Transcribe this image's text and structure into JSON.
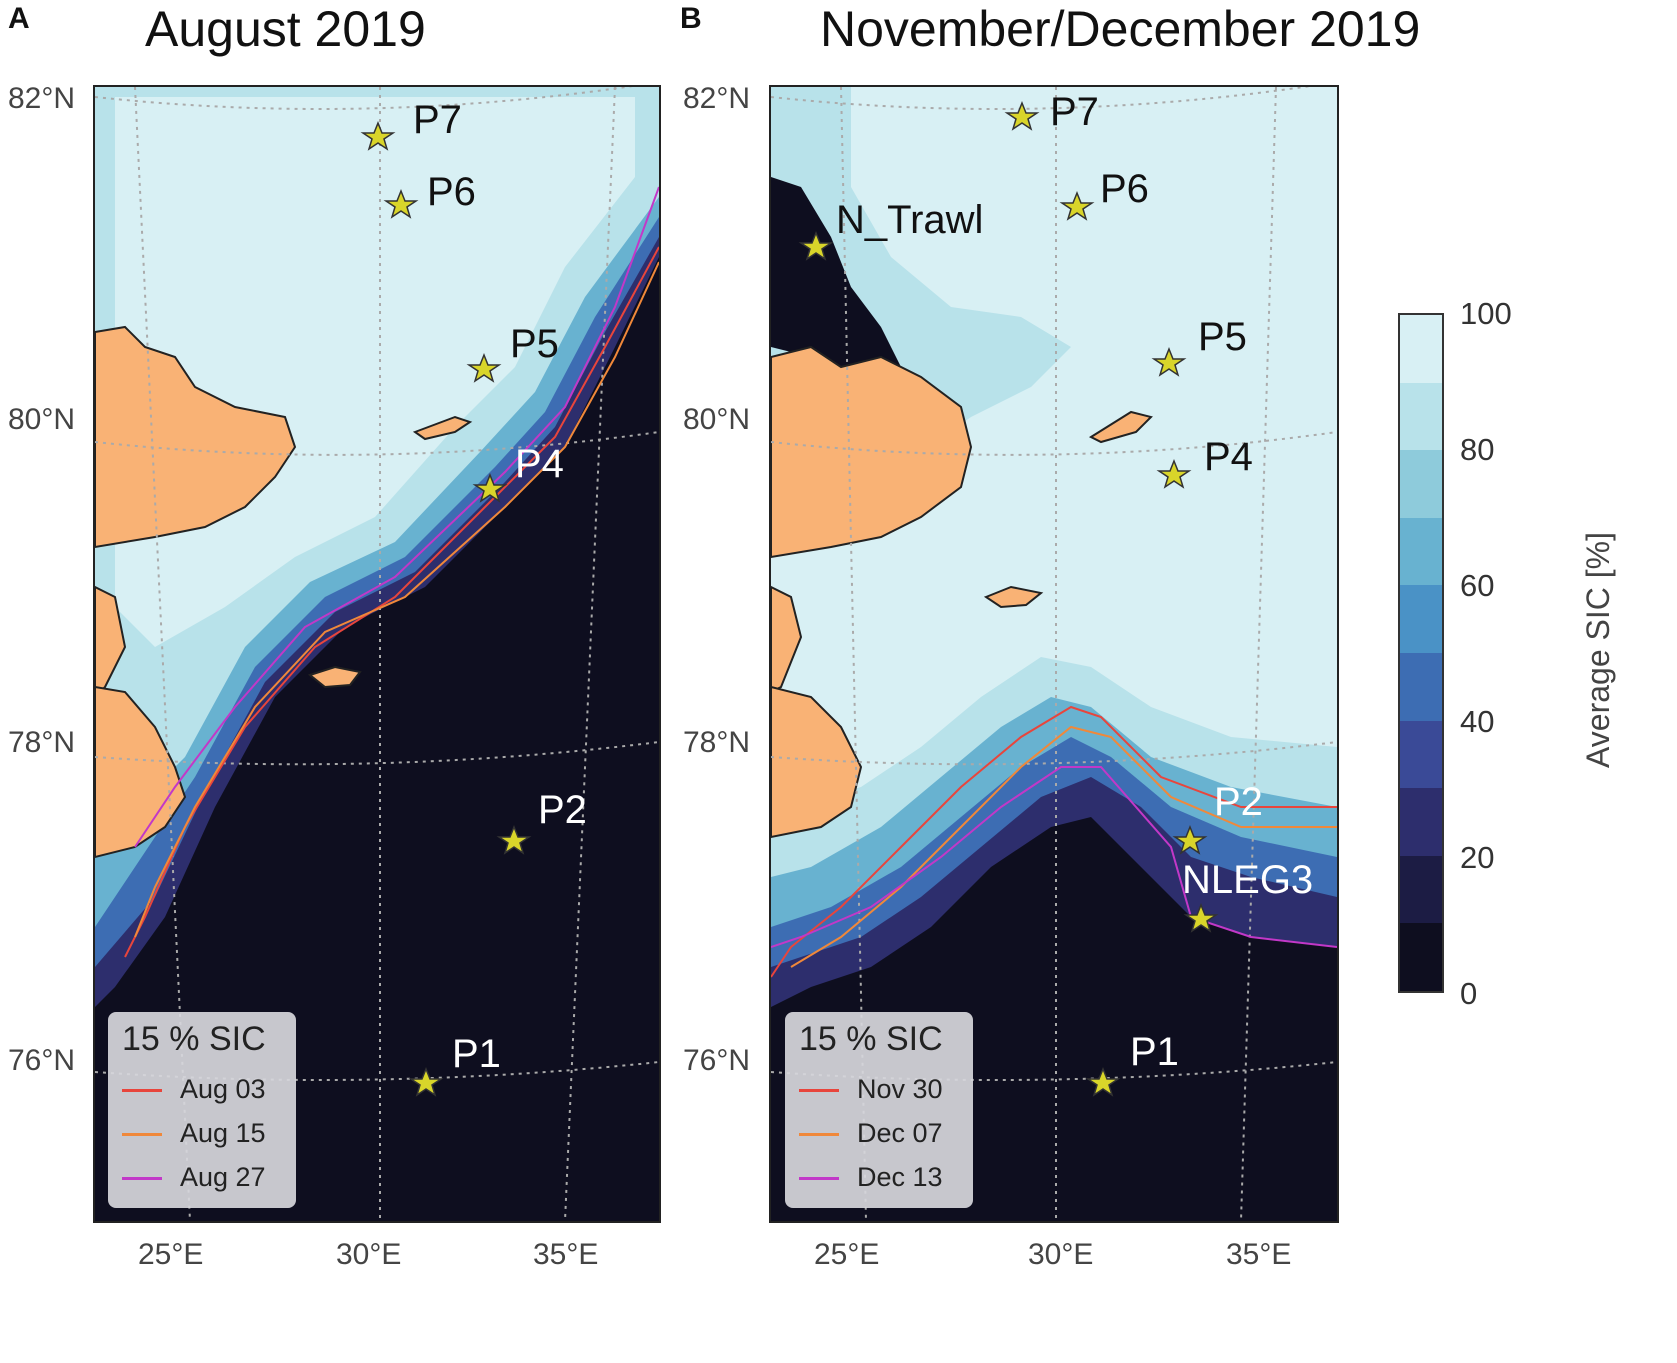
{
  "panels": [
    {
      "letter": "A",
      "title": "August 2019",
      "lat_labels": [
        "82°N",
        "80°N",
        "78°N",
        "76°N"
      ],
      "lon_labels": [
        "25°E",
        "30°E",
        "35°E"
      ],
      "legend": {
        "title": "15 % SIC",
        "entries": [
          {
            "label": "Aug 03",
            "color": "#e8453c"
          },
          {
            "label": "Aug 15",
            "color": "#f0883a"
          },
          {
            "label": "Aug 27",
            "color": "#c238c8"
          }
        ]
      },
      "stations": [
        "P7",
        "P6",
        "P5",
        "P4",
        "P2",
        "P1"
      ]
    },
    {
      "letter": "B",
      "title": "November/December 2019",
      "lat_labels": [
        "82°N",
        "80°N",
        "78°N",
        "76°N"
      ],
      "lon_labels": [
        "25°E",
        "30°E",
        "35°E"
      ],
      "legend": {
        "title": "15 % SIC",
        "entries": [
          {
            "label": "Nov 30",
            "color": "#e8453c"
          },
          {
            "label": "Dec 07",
            "color": "#f0883a"
          },
          {
            "label": "Dec 13",
            "color": "#c238c8"
          }
        ]
      },
      "stations": [
        "P7",
        "P6",
        "N_Trawl",
        "P5",
        "P4",
        "P2",
        "NLEG3",
        "P1"
      ]
    }
  ],
  "colorbar": {
    "title": "Average SIC [%]",
    "ticks": [
      "100",
      "80",
      "60",
      "40",
      "20",
      "0"
    ],
    "colors": [
      "#d8f0f4",
      "#b8e2ea",
      "#8ecbdb",
      "#68b2d0",
      "#4a92c6",
      "#3d6db3",
      "#3a4a97",
      "#2d2e6d",
      "#1c1c44",
      "#0e0e1f"
    ]
  },
  "colors": {
    "land": "#f9b275",
    "ice_full": "#d8f0f4",
    "open_water": "#0e0e1f",
    "station_marker": "#d9d52a"
  }
}
